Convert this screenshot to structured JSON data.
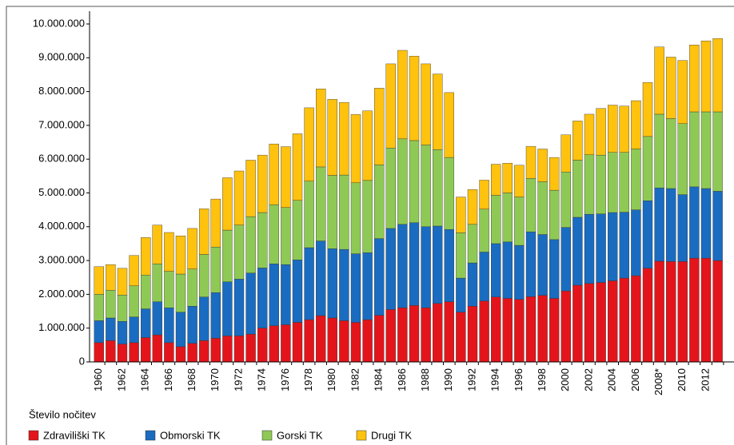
{
  "chart_data": {
    "type": "stacked_bar",
    "y_label": "Število nočitev",
    "categories": [
      "1960",
      null,
      "1962",
      null,
      "1964",
      null,
      "1966",
      null,
      "1968",
      null,
      "1970",
      null,
      "1972",
      null,
      "1974",
      null,
      "1976",
      null,
      "1978",
      null,
      "1980",
      null,
      "1982",
      null,
      "1984",
      null,
      "1986",
      null,
      "1988",
      null,
      "1990",
      null,
      "1992",
      null,
      "1994",
      null,
      "1996",
      null,
      "1998",
      null,
      "2000",
      null,
      "2002",
      null,
      "2004",
      null,
      "2006",
      null,
      "2008*",
      null,
      "2010",
      null,
      "2012",
      null
    ],
    "series": [
      {
        "name": "Zdraviliški TK",
        "color": "#e3151b",
        "values": [
          570000,
          630000,
          530000,
          570000,
          720000,
          800000,
          570000,
          450000,
          550000,
          630000,
          700000,
          770000,
          770000,
          820000,
          1000000,
          1070000,
          1100000,
          1170000,
          1250000,
          1370000,
          1300000,
          1220000,
          1170000,
          1250000,
          1380000,
          1550000,
          1600000,
          1670000,
          1600000,
          1730000,
          1780000,
          1470000,
          1650000,
          1800000,
          1920000,
          1880000,
          1850000,
          1930000,
          1970000,
          1880000,
          2100000,
          2270000,
          2320000,
          2350000,
          2400000,
          2480000,
          2550000,
          2770000,
          2980000,
          2970000,
          2970000,
          3070000,
          3070000,
          3000000
        ]
      },
      {
        "name": "Obmorski TK",
        "color": "#1a6cc0",
        "values": [
          650000,
          670000,
          670000,
          760000,
          850000,
          980000,
          1030000,
          1020000,
          1100000,
          1290000,
          1350000,
          1600000,
          1680000,
          1810000,
          1780000,
          1830000,
          1780000,
          1850000,
          2130000,
          2210000,
          2050000,
          2110000,
          2030000,
          1980000,
          2270000,
          2400000,
          2470000,
          2450000,
          2400000,
          2290000,
          2140000,
          1010000,
          1280000,
          1450000,
          1580000,
          1670000,
          1600000,
          1920000,
          1800000,
          1740000,
          1880000,
          2010000,
          2050000,
          2030000,
          2020000,
          1950000,
          1950000,
          2000000,
          2170000,
          2160000,
          1980000,
          2110000,
          2060000,
          2050000
        ]
      },
      {
        "name": "Gorski TK",
        "color": "#8fc955",
        "values": [
          780000,
          820000,
          780000,
          920000,
          1000000,
          1120000,
          1080000,
          1130000,
          1100000,
          1260000,
          1350000,
          1530000,
          1600000,
          1670000,
          1640000,
          1750000,
          1690000,
          1760000,
          1970000,
          2190000,
          2170000,
          2200000,
          2100000,
          2140000,
          2180000,
          2380000,
          2530000,
          2430000,
          2420000,
          2260000,
          2130000,
          1340000,
          1140000,
          1270000,
          1430000,
          1450000,
          1430000,
          1580000,
          1560000,
          1460000,
          1640000,
          1690000,
          1760000,
          1740000,
          1780000,
          1770000,
          1800000,
          1900000,
          2180000,
          2070000,
          2100000,
          2220000,
          2270000,
          2350000
        ]
      },
      {
        "name": "Drugi TK",
        "color": "#ffc20e",
        "values": [
          820000,
          760000,
          790000,
          900000,
          1110000,
          1150000,
          1150000,
          1130000,
          1200000,
          1350000,
          1420000,
          1550000,
          1600000,
          1670000,
          1700000,
          1800000,
          1800000,
          1970000,
          2170000,
          2310000,
          2250000,
          2150000,
          2020000,
          2060000,
          2270000,
          2490000,
          2620000,
          2500000,
          2400000,
          2240000,
          1920000,
          1060000,
          1030000,
          860000,
          920000,
          880000,
          940000,
          950000,
          970000,
          970000,
          1100000,
          1160000,
          1200000,
          1380000,
          1400000,
          1370000,
          1430000,
          1600000,
          1990000,
          1820000,
          1870000,
          1980000,
          2100000,
          2170000
        ]
      }
    ],
    "ylim": [
      0,
      10000000
    ],
    "yticks": [
      0,
      {
        "value": 1000000,
        "label": "1.000.000"
      },
      {
        "value": 2000000,
        "label": "2.000.000"
      },
      {
        "value": 3000000,
        "label": "3.000.000"
      },
      {
        "value": 4000000,
        "label": "4.000.000"
      },
      {
        "value": 5000000,
        "label": "5.000.000"
      },
      {
        "value": 6000000,
        "label": "6.000.000"
      },
      {
        "value": 7000000,
        "label": "7.000.000"
      },
      {
        "value": 8000000,
        "label": "8.000.000"
      },
      {
        "value": 9000000,
        "label": "9.000.000"
      },
      {
        "value": 10000000,
        "label": "10.000.000"
      }
    ],
    "legend": "bottom-left"
  }
}
